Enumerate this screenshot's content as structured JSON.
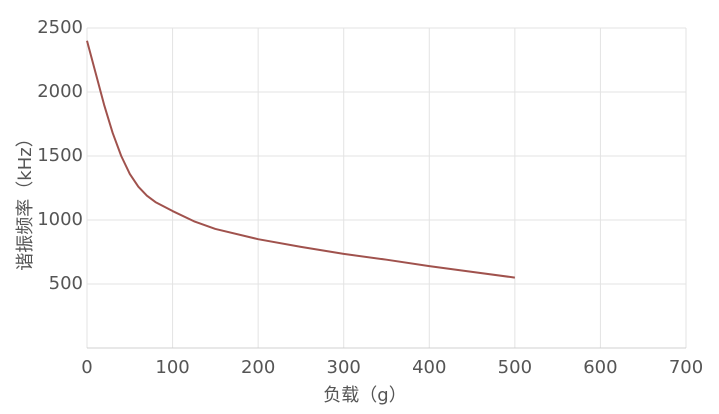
{
  "chart_data": {
    "type": "line",
    "xlabel": "负载（g）",
    "ylabel": "谐振频率（kHz）",
    "x": [
      0,
      10,
      20,
      30,
      40,
      50,
      60,
      70,
      80,
      100,
      125,
      150,
      200,
      250,
      300,
      350,
      400,
      450,
      500
    ],
    "values": [
      2400,
      2150,
      1900,
      1680,
      1500,
      1360,
      1260,
      1190,
      1140,
      1070,
      990,
      930,
      850,
      790,
      735,
      690,
      640,
      595,
      550
    ],
    "color": "#a0524d",
    "xlim": [
      0,
      700
    ],
    "xticks": [
      0,
      100,
      200,
      300,
      400,
      500,
      600,
      700
    ],
    "ylim": [
      0,
      2500
    ],
    "yticks": [
      500,
      1000,
      1500,
      2000,
      2500
    ],
    "grid": true
  }
}
